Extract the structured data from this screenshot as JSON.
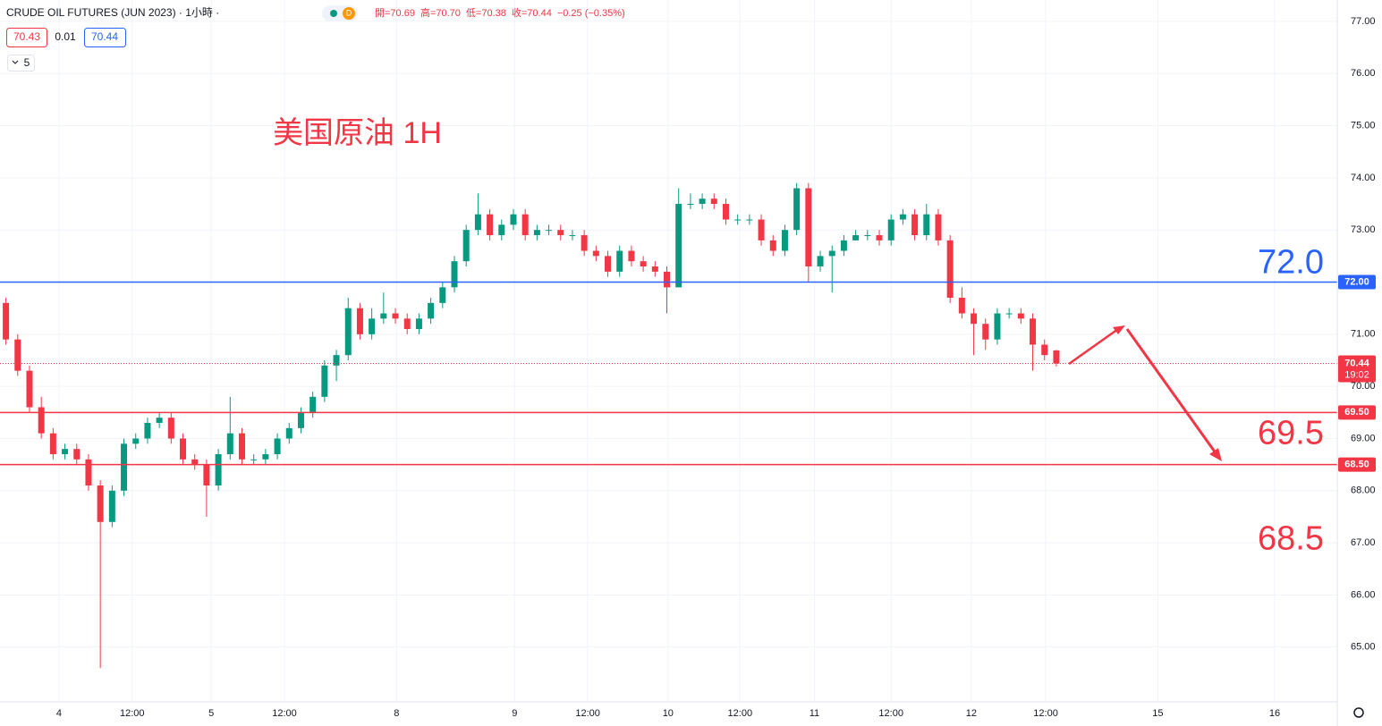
{
  "header": {
    "symbol": "CRUDE OIL FUTURES (JUN 2023) · 1小時 ·",
    "interval_badge": "D",
    "ohlc": [
      "開=70.69",
      "高=70.70",
      "低=70.38",
      "收=70.44"
    ],
    "change": "−0.25 (−0.35%)",
    "bid": "70.43",
    "spread": "0.01",
    "ask": "70.44",
    "indicator": "5"
  },
  "chart_data": {
    "type": "candlestick",
    "title": "美国原油 1H",
    "up_color": "#089981",
    "down_color": "#f23645",
    "grid": true,
    "ylim": [
      63.95,
      77.41
    ],
    "yticks": [
      {
        "value": 65,
        "label": "65.00"
      },
      {
        "value": 66,
        "label": "66.00"
      },
      {
        "value": 67,
        "label": "67.00"
      },
      {
        "value": 68,
        "label": "68.00"
      },
      {
        "value": 69,
        "label": "69.00"
      },
      {
        "value": 70,
        "label": "70.00"
      },
      {
        "value": 71,
        "label": "71.00"
      },
      {
        "value": 72,
        "label": "72.00"
      },
      {
        "value": 73,
        "label": "73.00"
      },
      {
        "value": 74,
        "label": "74.00"
      },
      {
        "value": 75,
        "label": "75.00"
      },
      {
        "value": 76,
        "label": "76.00"
      },
      {
        "value": 77,
        "label": "77.00"
      }
    ],
    "xlim": [
      0,
      113
    ],
    "xticks": [
      {
        "value": 5.0,
        "label": "4"
      },
      {
        "value": 11.2,
        "label": "12:00"
      },
      {
        "value": 17.9,
        "label": "5"
      },
      {
        "value": 24.1,
        "label": "12:00"
      },
      {
        "value": 33.6,
        "label": "8"
      },
      {
        "value": 43.6,
        "label": "9"
      },
      {
        "value": 49.8,
        "label": "12:00"
      },
      {
        "value": 56.6,
        "label": "10"
      },
      {
        "value": 62.7,
        "label": "12:00"
      },
      {
        "value": 69.0,
        "label": "11"
      },
      {
        "value": 75.5,
        "label": "12:00"
      },
      {
        "value": 82.3,
        "label": "12"
      },
      {
        "value": 88.6,
        "label": "12:00"
      },
      {
        "value": 98.1,
        "label": "15"
      },
      {
        "value": 108.0,
        "label": "16"
      }
    ],
    "open": [
      71.6,
      70.9,
      70.3,
      69.6,
      69.1,
      68.7,
      68.8,
      68.6,
      68.1,
      67.4,
      68.0,
      68.9,
      69.0,
      69.3,
      69.4,
      69.0,
      68.6,
      68.5,
      68.1,
      68.7,
      69.1,
      68.6,
      68.6,
      68.7,
      69.0,
      69.2,
      69.5,
      69.8,
      70.4,
      70.6,
      71.5,
      71.0,
      71.3,
      71.4,
      71.3,
      71.1,
      71.3,
      71.6,
      71.9,
      72.4,
      73.0,
      73.3,
      72.9,
      73.1,
      73.3,
      72.9,
      73.0,
      73.0,
      72.9,
      72.9,
      72.6,
      72.5,
      72.2,
      72.6,
      72.4,
      72.3,
      72.2,
      71.9,
      73.5,
      73.5,
      73.6,
      73.5,
      73.2,
      73.2,
      73.2,
      72.8,
      72.6,
      73.0,
      73.8,
      72.3,
      72.5,
      72.6,
      72.8,
      72.9,
      72.9,
      72.8,
      73.2,
      73.3,
      72.9,
      73.3,
      72.8,
      71.7,
      71.4,
      71.2,
      70.9,
      71.4,
      71.4,
      71.3,
      70.8,
      70.69
    ],
    "high": [
      71.7,
      71.0,
      70.4,
      69.8,
      69.2,
      68.9,
      68.9,
      68.7,
      68.2,
      68.1,
      69.0,
      69.1,
      69.4,
      69.5,
      69.5,
      69.1,
      68.7,
      68.6,
      68.8,
      69.8,
      69.2,
      68.7,
      68.8,
      69.1,
      69.3,
      69.6,
      69.9,
      70.5,
      70.7,
      71.7,
      71.6,
      71.5,
      71.8,
      71.5,
      71.4,
      71.4,
      71.7,
      72.0,
      72.5,
      73.1,
      73.7,
      73.4,
      73.2,
      73.4,
      73.4,
      73.1,
      73.1,
      73.1,
      73.0,
      73.0,
      72.7,
      72.6,
      72.7,
      72.7,
      72.5,
      72.4,
      72.3,
      73.8,
      73.7,
      73.7,
      73.7,
      73.6,
      73.3,
      73.3,
      73.3,
      72.9,
      73.1,
      73.9,
      73.9,
      72.6,
      72.7,
      72.9,
      73.0,
      73.0,
      73.0,
      73.3,
      73.4,
      73.4,
      73.5,
      73.4,
      72.9,
      71.9,
      71.5,
      71.3,
      71.5,
      71.5,
      71.5,
      71.4,
      70.9,
      70.7
    ],
    "low": [
      70.8,
      70.2,
      69.5,
      69.0,
      68.6,
      68.6,
      68.5,
      68.0,
      64.6,
      67.3,
      67.9,
      68.8,
      68.9,
      69.2,
      68.9,
      68.5,
      68.4,
      67.5,
      68.0,
      68.6,
      68.5,
      68.5,
      68.5,
      68.6,
      68.9,
      69.1,
      69.4,
      69.7,
      70.1,
      70.5,
      70.9,
      70.9,
      71.2,
      71.2,
      71.0,
      71.0,
      71.2,
      71.5,
      71.8,
      72.3,
      72.9,
      72.8,
      72.8,
      73.0,
      72.8,
      72.8,
      72.9,
      72.8,
      72.8,
      72.5,
      72.4,
      72.1,
      72.1,
      72.3,
      72.2,
      72.1,
      71.4,
      71.9,
      73.4,
      73.4,
      73.4,
      73.1,
      73.1,
      73.1,
      72.7,
      72.5,
      72.5,
      72.9,
      72.0,
      72.2,
      71.8,
      72.5,
      72.8,
      72.8,
      72.7,
      72.7,
      73.1,
      72.8,
      72.8,
      72.7,
      71.6,
      71.3,
      70.6,
      70.7,
      70.8,
      71.3,
      71.2,
      70.3,
      70.5,
      70.38
    ],
    "close": [
      70.9,
      70.3,
      69.6,
      69.1,
      68.7,
      68.8,
      68.6,
      68.1,
      67.4,
      68.0,
      68.9,
      69.0,
      69.3,
      69.4,
      69.0,
      68.6,
      68.5,
      68.1,
      68.7,
      69.1,
      68.6,
      68.6,
      68.7,
      69.0,
      69.2,
      69.5,
      69.8,
      70.4,
      70.6,
      71.5,
      71.0,
      71.3,
      71.4,
      71.3,
      71.1,
      71.3,
      71.6,
      71.9,
      72.4,
      73.0,
      73.3,
      72.9,
      73.1,
      73.3,
      72.9,
      73.0,
      73.0,
      72.9,
      72.9,
      72.6,
      72.5,
      72.2,
      72.6,
      72.4,
      72.3,
      72.2,
      71.9,
      73.5,
      73.5,
      73.6,
      73.5,
      73.2,
      73.2,
      73.2,
      72.8,
      72.6,
      73.0,
      73.8,
      72.3,
      72.5,
      72.6,
      72.8,
      72.9,
      72.9,
      72.8,
      73.2,
      73.3,
      72.9,
      73.3,
      72.8,
      71.7,
      71.4,
      71.2,
      70.9,
      71.4,
      71.4,
      71.3,
      70.8,
      70.6,
      70.44
    ],
    "horizontal_lines": [
      {
        "value": 72,
        "label": "72.00",
        "color": "#2962ff",
        "annotation": "72.0"
      },
      {
        "value": 69.5,
        "label": "69.50",
        "color": "#f23645",
        "annotation": "69.5"
      },
      {
        "value": 68.5,
        "label": "68.50",
        "color": "#f23645",
        "annotation": "68.5"
      }
    ],
    "last_price": {
      "value": 70.44,
      "label": "70.44",
      "countdown": "19:02",
      "color": "#f23645"
    }
  }
}
